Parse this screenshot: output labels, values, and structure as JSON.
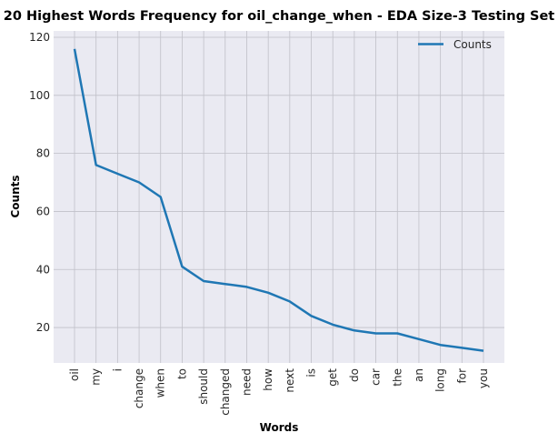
{
  "chart_data": {
    "type": "line",
    "title": "20 Highest Words Frequency for oil_change_when - EDA Size-3 Testing Set",
    "xlabel": "Words",
    "ylabel": "Counts",
    "categories": [
      "oil",
      "my",
      "i",
      "change",
      "when",
      "to",
      "should",
      "changed",
      "need",
      "how",
      "next",
      "is",
      "get",
      "do",
      "car",
      "the",
      "an",
      "long",
      "for",
      "you"
    ],
    "series": [
      {
        "name": "Counts",
        "values": [
          116,
          76,
          73,
          70,
          65,
          41,
          36,
          35,
          34,
          32,
          29,
          24,
          21,
          19,
          18,
          18,
          16,
          14,
          13,
          12
        ]
      }
    ],
    "ylim": [
      7.8,
      122.2
    ],
    "yticks": [
      20,
      40,
      60,
      80,
      100,
      120
    ],
    "grid": true,
    "legend": "top-right",
    "colors": {
      "line": "#1f77b4",
      "background": "#eaeaf2",
      "grid": "#c0c0c8"
    }
  }
}
